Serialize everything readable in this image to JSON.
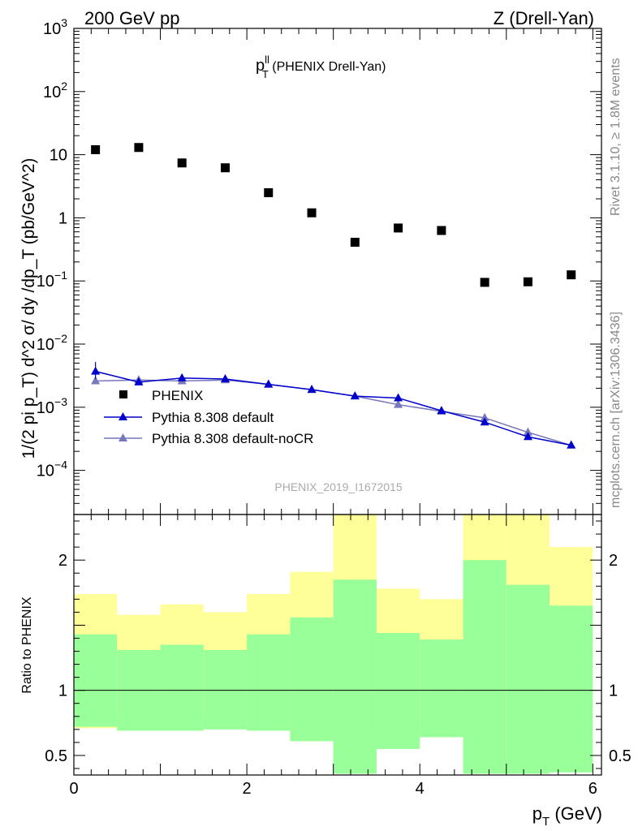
{
  "header": {
    "left": "200 GeV pp",
    "right": "Z (Drell-Yan)"
  },
  "side_labels": {
    "rivet": "Rivet 3.1.10, ≥ 1.8M events",
    "mcplots": "mcplots.cern.ch [arXiv:1306.3436]"
  },
  "main_plot": {
    "title_p": "p",
    "title_sup": "ll",
    "title_sub": "T",
    "title_rest": " (PHENIX Drell-Yan)",
    "ylabel": "1/(2 pi p_T) d^2 σ/ dy /dp_T (pb/GeV^2)",
    "watermark": "PHENIX_2019_I1672015",
    "yscale": "log",
    "ylim": [
      2e-05,
      1000
    ],
    "xlim": [
      0,
      6.1
    ],
    "ytick_labels": [
      {
        "v": 1000,
        "base": "10",
        "exp": "3"
      },
      {
        "v": 100,
        "base": "10",
        "exp": "2"
      },
      {
        "v": 10,
        "base": "10",
        "exp": ""
      },
      {
        "v": 1,
        "base": "1",
        "exp": ""
      },
      {
        "v": 0.1,
        "base": "10",
        "exp": "−1"
      },
      {
        "v": 0.01,
        "base": "10",
        "exp": "−2"
      },
      {
        "v": 0.001,
        "base": "10",
        "exp": "−3"
      },
      {
        "v": 0.0001,
        "base": "10",
        "exp": "−4"
      }
    ]
  },
  "ratio_plot": {
    "ylabel": "Ratio to PHENIX",
    "ylim": [
      0.35,
      2.35
    ],
    "ytick_labels": [
      "2",
      "1",
      "0.5"
    ]
  },
  "xaxis": {
    "label": "p",
    "label_sub": "T",
    "label_unit": " (GeV)",
    "tick_labels": [
      "0",
      "2",
      "4",
      "6"
    ]
  },
  "legend": {
    "placement": "lower-left",
    "entries": [
      "PHENIX",
      "Pythia 8.308 default",
      "Pythia 8.308 default-noCR"
    ]
  },
  "colors": {
    "data": "#000000",
    "default": "#0000cc",
    "nocr": "#7777bb",
    "band_inner": "#99ff99",
    "band_outer": "#ffff99"
  },
  "chart_data": {
    "type": "scatter",
    "x_edges": [
      0,
      0.5,
      1.0,
      1.5,
      2.0,
      2.5,
      3.0,
      3.5,
      4.0,
      4.5,
      5.0,
      5.5,
      6.0
    ],
    "x": [
      0.25,
      0.75,
      1.25,
      1.75,
      2.25,
      2.75,
      3.25,
      3.75,
      4.25,
      4.75,
      5.25,
      5.75
    ],
    "series": [
      {
        "name": "PHENIX",
        "values": [
          12,
          13,
          7.4,
          6.2,
          2.5,
          1.2,
          0.41,
          0.69,
          0.63,
          0.095,
          0.097,
          0.125
        ]
      },
      {
        "name": "Pythia 8.308 default",
        "values": [
          0.0037,
          0.0025,
          0.0029,
          0.0028,
          0.0023,
          0.0019,
          0.0015,
          0.0014,
          0.00088,
          0.00058,
          0.00034,
          0.00025
        ]
      },
      {
        "name": "Pythia 8.308 default-noCR",
        "values": [
          0.0026,
          0.0027,
          0.0026,
          0.0027,
          0.0023,
          0.0019,
          0.0015,
          0.0011,
          0.00086,
          0.00068,
          0.0004,
          0.00025
        ]
      }
    ],
    "ratio_bands": {
      "inner_up": [
        1.43,
        1.31,
        1.35,
        1.31,
        1.43,
        1.56,
        1.85,
        1.44,
        1.39,
        2.0,
        1.81,
        1.65
      ],
      "inner_dn": [
        0.72,
        0.69,
        0.69,
        0.7,
        0.69,
        0.61,
        0.36,
        0.55,
        0.64,
        0.36,
        0.36,
        0.37
      ],
      "outer_up": [
        1.74,
        1.58,
        1.66,
        1.6,
        1.74,
        1.91,
        2.6,
        1.78,
        1.7,
        2.6,
        2.6,
        2.1
      ],
      "outer_dn": [
        0.71,
        0.83,
        0.79,
        0.81,
        0.71,
        0.61,
        0.36,
        0.69,
        0.74,
        0.36,
        0.36,
        0.42
      ]
    }
  }
}
